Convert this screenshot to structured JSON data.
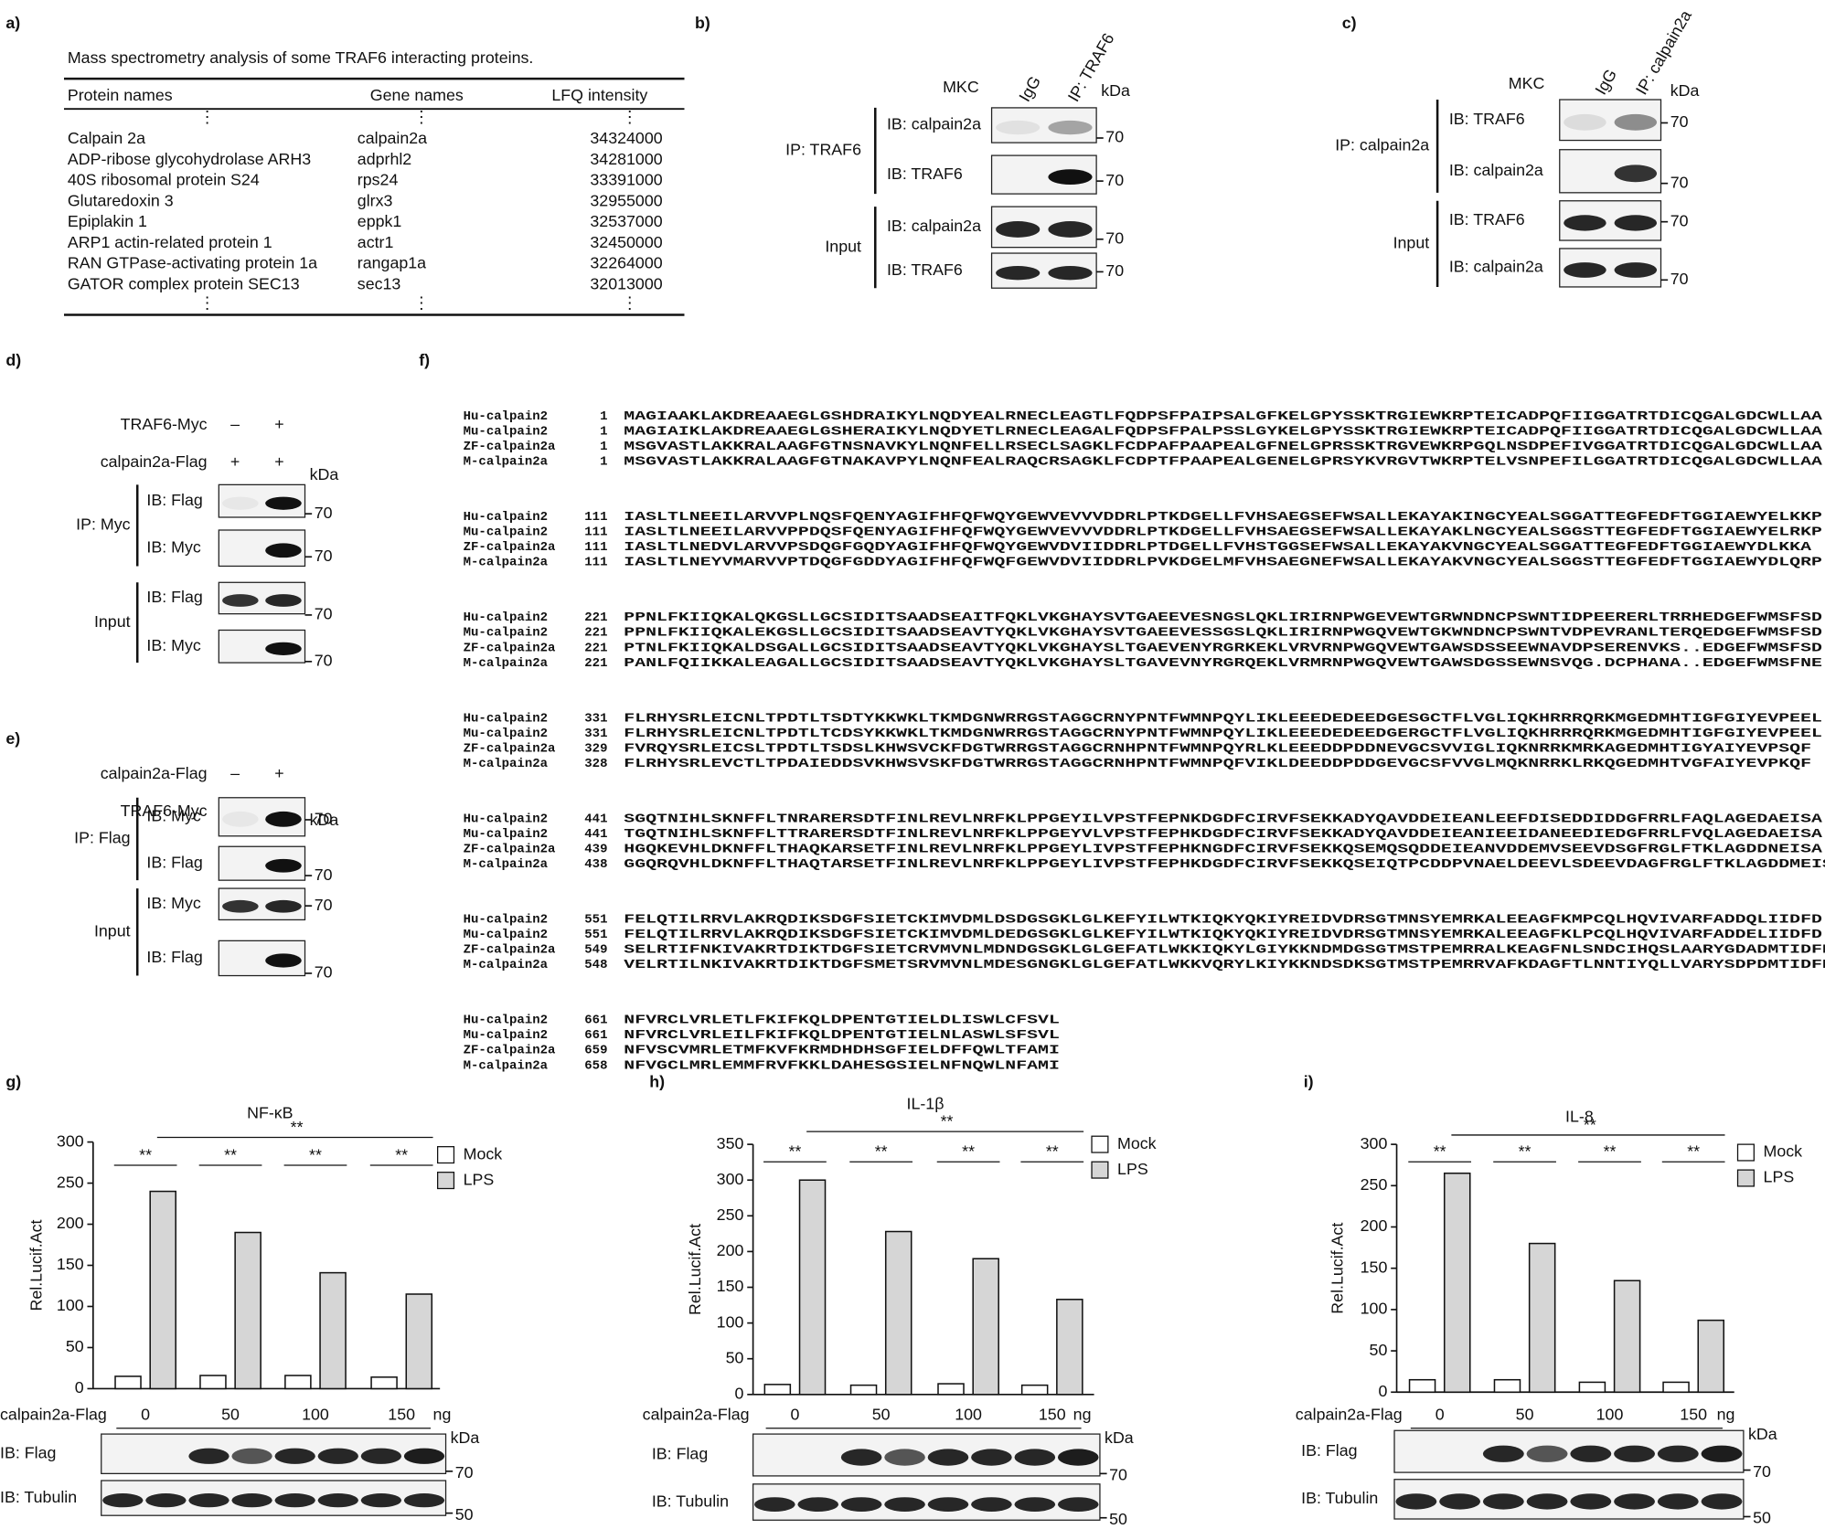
{
  "panels": {
    "a": {
      "label": "a)",
      "caption": "Mass spectrometry analysis of some TRAF6 interacting proteins.",
      "headers": [
        "Protein names",
        "Gene names",
        "LFQ intensity"
      ],
      "ellipsis": "⋮",
      "rows": [
        [
          "Calpain 2a",
          "calpain2a",
          34324000
        ],
        [
          "ADP-ribose glycohydrolase ARH3",
          "adprhl2",
          34281000
        ],
        [
          "40S ribosomal protein S24",
          "rps24",
          33391000
        ],
        [
          "Glutaredoxin 3",
          "glrx3",
          32955000
        ],
        [
          "Epiplakin 1",
          "eppk1",
          32537000
        ],
        [
          "ARP1 actin-related protein 1",
          "actr1",
          32450000
        ],
        [
          "RAN GTPase-activating protein 1a",
          "rangap1a",
          32264000
        ],
        [
          "GATOR complex protein SEC13",
          "sec13",
          32013000
        ]
      ]
    },
    "b": {
      "label": "b)",
      "cell_line": "MKC",
      "lanes": [
        "IgG",
        "IP: TRAF6"
      ],
      "kda": "kDa",
      "groups": [
        {
          "name": "IP: TRAF6",
          "blots": [
            {
              "ib": "IB: calpain2a",
              "marker": 70
            },
            {
              "ib": "IB: TRAF6",
              "marker": 70
            }
          ]
        },
        {
          "name": "Input",
          "blots": [
            {
              "ib": "IB: calpain2a",
              "marker": 70
            },
            {
              "ib": "IB: TRAF6",
              "marker": 70
            }
          ]
        }
      ]
    },
    "c": {
      "label": "c)",
      "cell_line": "MKC",
      "lanes": [
        "IgG",
        "IP: calpain2a"
      ],
      "kda": "kDa",
      "groups": [
        {
          "name": "IP: calpain2a",
          "blots": [
            {
              "ib": "IB: TRAF6",
              "marker": 70
            },
            {
              "ib": "IB: calpain2a",
              "marker": 70
            }
          ]
        },
        {
          "name": "Input",
          "blots": [
            {
              "ib": "IB: TRAF6",
              "marker": 70
            },
            {
              "ib": "IB: calpain2a",
              "marker": 70
            }
          ]
        }
      ]
    },
    "d": {
      "label": "d)",
      "conditions": [
        {
          "name": "TRAF6-Myc",
          "signs": [
            "–",
            "+"
          ]
        },
        {
          "name": "calpain2a-Flag",
          "signs": [
            "+",
            "+"
          ]
        }
      ],
      "kda": "kDa",
      "groups": [
        {
          "name": "IP: Myc",
          "blots": [
            {
              "ib": "IB: Flag",
              "marker": 70
            },
            {
              "ib": "IB: Myc",
              "marker": 70
            }
          ]
        },
        {
          "name": "Input",
          "blots": [
            {
              "ib": "IB: Flag",
              "marker": 70
            },
            {
              "ib": "IB: Myc",
              "marker": 70
            }
          ]
        }
      ]
    },
    "e": {
      "label": "e)",
      "conditions": [
        {
          "name": "calpain2a-Flag",
          "signs": [
            "–",
            "+"
          ]
        },
        {
          "name": "TRAF6-Myc",
          "signs": [
            "+",
            "+"
          ]
        }
      ],
      "kda": "kDa",
      "groups": [
        {
          "name": "IP: Flag",
          "blots": [
            {
              "ib": "IB: Myc",
              "marker": 70
            },
            {
              "ib": "IB: Flag",
              "marker": 70
            }
          ]
        },
        {
          "name": "Input",
          "blots": [
            {
              "ib": "IB: Myc",
              "marker": 70
            },
            {
              "ib": "IB: Flag",
              "marker": 70
            }
          ]
        }
      ]
    },
    "f": {
      "label": "f)",
      "blocks": [
        {
          "rows": [
            {
              "name": "Hu-calpain2",
              "start": 1,
              "seq": "MAGIAAKLAKDREAAEGLGSHDRAIKYLNQDYEALRNECLEAGTLFQDPSFPAIPSALGFKELGPYSSKTRGIEWKRPTEICADPQFIIGGATRTDICQGALGDCWLLAA"
            },
            {
              "name": "Mu-calpain2",
              "start": 1,
              "seq": "MAGIAIKLAKDREAAEGLGSHERAIKYLNQDYETLRNECLEAGALFQDPSFPALPSSLGYKELGPYSSKTRGIEWKRPTEICADPQFIIGGATRTDICQGALGDCWLLAA"
            },
            {
              "name": "ZF-calpain2a",
              "start": 1,
              "seq": "MSGVASTLAKKRALAAGFGTNSNAVKYLNQNFELLRSECLSAGKLFCDPAFPAAPEALGFNELGPRSSKTRGVEWKRPGQLNSDPEFIVGGATRTDICQGALGDCWLLAA"
            },
            {
              "name": "M-calpain2a",
              "start": 1,
              "seq": "MSGVASTLAKKRALAAGFGTNAKAVPYLNQNFEALRAQCRSAGKLFCDPTFPAAPEALGENELGPRSYKVRGVTWKRPTELVSNPEFILGGATRTDICQGALGDCWLLAA"
            }
          ]
        },
        {
          "rows": [
            {
              "name": "Hu-calpain2",
              "start": 111,
              "seq": "IASLTLNEEILARVVPLNQSFQENYAGIFHFQFWQYGEWVEVVVDDRLPTKDGELLFVHSAEGSEFWSALLEKAYAKINGCYEALSGGATTEGFEDFTGGIAEWYELKKP"
            },
            {
              "name": "Mu-calpain2",
              "start": 111,
              "seq": "IASLTLNEEILARVVPPDQSFQENYAGIFHFQFWQYGEWVEVVVDDRLPTKDGELLFVHSAEGSEFWSALLEKAYAKLNGCYEALSGGSTTEGFEDFTGGIAEWYELRKP"
            },
            {
              "name": "ZF-calpain2a",
              "start": 111,
              "seq": "IASLTLNEDVLARVVPSDQGFGQDYAGIFHFQFWQYGEWVDVIIDDRLPTDGELLFVHSTGGSEFWSALLEKAYAKVNGCYEALSGGATTEGFEDFTGGIAEWYDLKKA"
            },
            {
              "name": "M-calpain2a",
              "start": 111,
              "seq": "IASLTLNEYVMARVVPTDQGFGDDYAGIFHFQFWQFGEWVDVIIDDRLPVKDGELMFVHSAEGNEFWSALLEKAYAKVNGCYEALSGGSTTEGFEDFTGGIAEWYDLQRP"
            }
          ]
        },
        {
          "rows": [
            {
              "name": "Hu-calpain2",
              "start": 221,
              "seq": "PPNLFKIIQKALQKGSLLGCSIDITSAADSEAITFQKLVKGHAYSVTGAEEVESNGSLQKLIRIRNPWGEVEWTGRWNDNCPSWNTIDPEERERLTRRHEDGEFWMSFSD"
            },
            {
              "name": "Mu-calpain2",
              "start": 221,
              "seq": "PPNLFKIIQKALEKGSLLGCSIDITSAADSEAVTYQKLVKGHAYSVTGAEEVESSGSLQKLIRIRNPWGQVEWTGKWNDNCPSWNTVDPEVRANLTERQEDGEFWMSFSD"
            },
            {
              "name": "ZF-calpain2a",
              "start": 221,
              "seq": "PTNLFKIIQKALDSGALLGCSIDITSAADSEAVTYQKLVKGHAYSLTGAEVENYRGRKEKLVRVRNPWGQVEWTGAWSDSSEEWNAVDPSERENVKS..EDGEFWMSFSD"
            },
            {
              "name": "M-calpain2a",
              "start": 221,
              "seq": "PANLFQIIKKALEAGALLGCSIDITSAADSEAVTYQKLVKGHAYSLTGAVEVNYRGRQEKLVRMRNPWGQVEWTGAWSDGSSEWNSVQG.DCPHANA..EDGEFWMSFNE"
            }
          ]
        },
        {
          "rows": [
            {
              "name": "Hu-calpain2",
              "start": 331,
              "seq": "FLRHYSRLEICNLTPDTLTSDTYKKWKLTKMDGNWRRGSTAGGCRNYPNTFWMNPQYLIKLEEEDEDEEDGESGCTFLVGLIQKHRRRQRKMGEDMHTIGFGIYEVPEEL"
            },
            {
              "name": "Mu-calpain2",
              "start": 331,
              "seq": "FLRHYSRLEICNLTPDTLTCDSYKKWKLTKMDGNWRRGSTAGGCRNYPNTFWMNPQYLIKLEEEDEDEEDGERGCTFLVGLIQKHRRRQRKMGEDMHTIGFGIYEVPEEL"
            },
            {
              "name": "ZF-calpain2a",
              "start": 329,
              "seq": "FVRQYSRLEICSLTPDTLTSDSLKHWSVCKFDGTWRRGSTAGGCRNHPNTFWMNPQYRLKLEEEDDPDDNEVGCSVVIGLIQKNRRKMRKAGEDMHTIGYAIYEVPSQF"
            },
            {
              "name": "M-calpain2a",
              "start": 328,
              "seq": "FLRHYSRLEVCTLTPDAIEDDSVKHWSVSKFDGTWRRGSTAGGCRNHPNTFWMNPQFVIKLDEEDDPDDGEVGCSFVVGLMQKNRRKLRKQGEDMHTVGFAIYEVPKQF"
            }
          ]
        },
        {
          "rows": [
            {
              "name": "Hu-calpain2",
              "start": 441,
              "seq": "SGQTNIHLSKNFFLTNRARERSDTFINLREVLNRFKLPPGEYILVPSTFEPNKDGDFCIRVFSEKKADYQAVDDEIEANLEEFDISEDDIDDGFRRLFAQLAGEDAEISA"
            },
            {
              "name": "Mu-calpain2",
              "start": 441,
              "seq": "TGQTNIHLSKNFFLTTRARERSDTFINLREVLNRFKLPPGEYVLVPSTFEPHKDGDFCIRVFSEKKADYQAVDDEIEANIEEIDANEEDIEDGFRRLFVQLAGEDAEISA"
            },
            {
              "name": "ZF-calpain2a",
              "start": 439,
              "seq": "HGQKEVHLDKNFFLTHAQKARSETFINLREVLNRFKLPPGEYLIVPSTFEPHKNGDFCIRVFSEKKQSEMQSQDDEIEANVDDEMVSEEVDSGFRGLFTKLAGDDNEISA"
            },
            {
              "name": "M-calpain2a",
              "start": 438,
              "seq": "GGQRQVHLDKNFFLTHAQTARSETFINLREVLNRFKLPPGEYLIVPSTFEPHKDGDFCIRVFSEKKQSEIQTPCDDPVNAELDEEVLSDEEVDAGFRGLFTKLAGDDMEISA"
            }
          ]
        },
        {
          "rows": [
            {
              "name": "Hu-calpain2",
              "start": 551,
              "seq": "FELQTILRRVLAKRQDIKSDGFSIETCKIMVDMLDSDGSGKLGLKEFYILWTKIQKYQKIYREIDVDRSGTMNSYEMRKALEEAGFKMPCQLHQVIVARFADDQLIIDFD"
            },
            {
              "name": "Mu-calpain2",
              "start": 551,
              "seq": "FELQTILRRVLAKRQDIKSDGFSIETCKIMVDMLDEDGSGKLGLKEFYILWTKIQKYQKIYREIDVDRSGTMNSYEMRKALEEAGFKLPCQLHQVIVARFADDELIIDFD"
            },
            {
              "name": "ZF-calpain2a",
              "start": 549,
              "seq": "SELRTIFNKIVAKRTDIKTDGFSIETCRVMVNLMDNDGSGKLGLGEFATLWKKIQKYLGIYKKNDMDGSGTMSTPEMRRALKEAGFNLSNDCIHQSLAARYGDADMTIDFD"
            },
            {
              "name": "M-calpain2a",
              "start": 548,
              "seq": "VELRTILNKIVAKRTDIKTDGFSMETSRVMVNLMDESGNGKLGLGEFATLWKKVQRYLKIYKKNDSDKSGTMSTPEMRRVAFKDAGFTLNNTIYQLLVARYSDPDMTIDFD"
            }
          ]
        },
        {
          "rows": [
            {
              "name": "Hu-calpain2",
              "start": 661,
              "seq": "NFVRCLVRLETLFKIFKQLDPENTGTIELDLISWLCFSVL"
            },
            {
              "name": "Mu-calpain2",
              "start": 661,
              "seq": "NFVRCLVRLEILFKIFKQLDPENTGTIELNLASWLSFSVL"
            },
            {
              "name": "ZF-calpain2a",
              "start": 659,
              "seq": "NFVSCVMRLETMFKVFKRMDHDHSGFIELDFFQWLTFAMI"
            },
            {
              "name": "M-calpain2a",
              "start": 658,
              "seq": "NFVGCLMRLEMMFRVFKKLDAHESGSIELNFNQWLNFAMI"
            }
          ]
        }
      ]
    },
    "g": {
      "label": "g)",
      "chart": {
        "type": "bar",
        "title": "NF-κB",
        "y_label": "Rel.Lucif.Act",
        "x_label": "calpain2a-Flag",
        "x_unit": "ng",
        "categories": [
          "0",
          "50",
          "100",
          "150"
        ],
        "series": [
          {
            "name": "Mock",
            "color": "#ffffff",
            "values": [
              15,
              16,
              16,
              14
            ]
          },
          {
            "name": "LPS",
            "color": "#d6d6d6",
            "values": [
              240,
              190,
              141,
              115
            ]
          }
        ],
        "ylim": [
          0,
          300
        ],
        "yticks": [
          0,
          50,
          100,
          150,
          200,
          250,
          300
        ],
        "significance": [
          "**",
          "**",
          "**",
          "**",
          "**"
        ]
      },
      "blots": {
        "kda": "kDa",
        "rows": [
          {
            "ib": "IB: Flag",
            "marker": 70
          },
          {
            "ib": "IB: Tubulin",
            "marker": 50
          }
        ]
      }
    },
    "h": {
      "label": "h)",
      "chart": {
        "type": "bar",
        "title": "IL-1β",
        "y_label": "Rel.Lucif.Act",
        "x_label": "calpain2a-Flag",
        "x_unit": "ng",
        "categories": [
          "0",
          "50",
          "100",
          "150"
        ],
        "series": [
          {
            "name": "Mock",
            "color": "#ffffff",
            "values": [
              14,
              13,
              15,
              13
            ]
          },
          {
            "name": "LPS",
            "color": "#d6d6d6",
            "values": [
              300,
              228,
              190,
              133
            ]
          }
        ],
        "ylim": [
          0,
          350
        ],
        "yticks": [
          0,
          50,
          100,
          150,
          200,
          250,
          300,
          350
        ],
        "significance": [
          "**",
          "**",
          "**",
          "**",
          "**"
        ]
      },
      "blots": {
        "kda": "kDa",
        "rows": [
          {
            "ib": "IB: Flag",
            "marker": 70
          },
          {
            "ib": "IB: Tubulin",
            "marker": 50
          }
        ]
      }
    },
    "i": {
      "label": "i)",
      "chart": {
        "type": "bar",
        "title": "IL-8",
        "y_label": "Rel.Lucif.Act",
        "x_label": "calpain2a-Flag",
        "x_unit": "ng",
        "categories": [
          "0",
          "50",
          "100",
          "150"
        ],
        "series": [
          {
            "name": "Mock",
            "color": "#ffffff",
            "values": [
              15,
              15,
              12,
              12
            ]
          },
          {
            "name": "LPS",
            "color": "#d6d6d6",
            "values": [
              265,
              180,
              135,
              87
            ]
          }
        ],
        "ylim": [
          0,
          300
        ],
        "yticks": [
          0,
          50,
          100,
          150,
          200,
          250,
          300
        ],
        "significance": [
          "**",
          "**",
          "**",
          "**",
          "**"
        ]
      },
      "blots": {
        "kda": "kDa",
        "rows": [
          {
            "ib": "IB: Flag",
            "marker": 70
          },
          {
            "ib": "IB: Tubulin",
            "marker": 50
          }
        ]
      }
    }
  }
}
